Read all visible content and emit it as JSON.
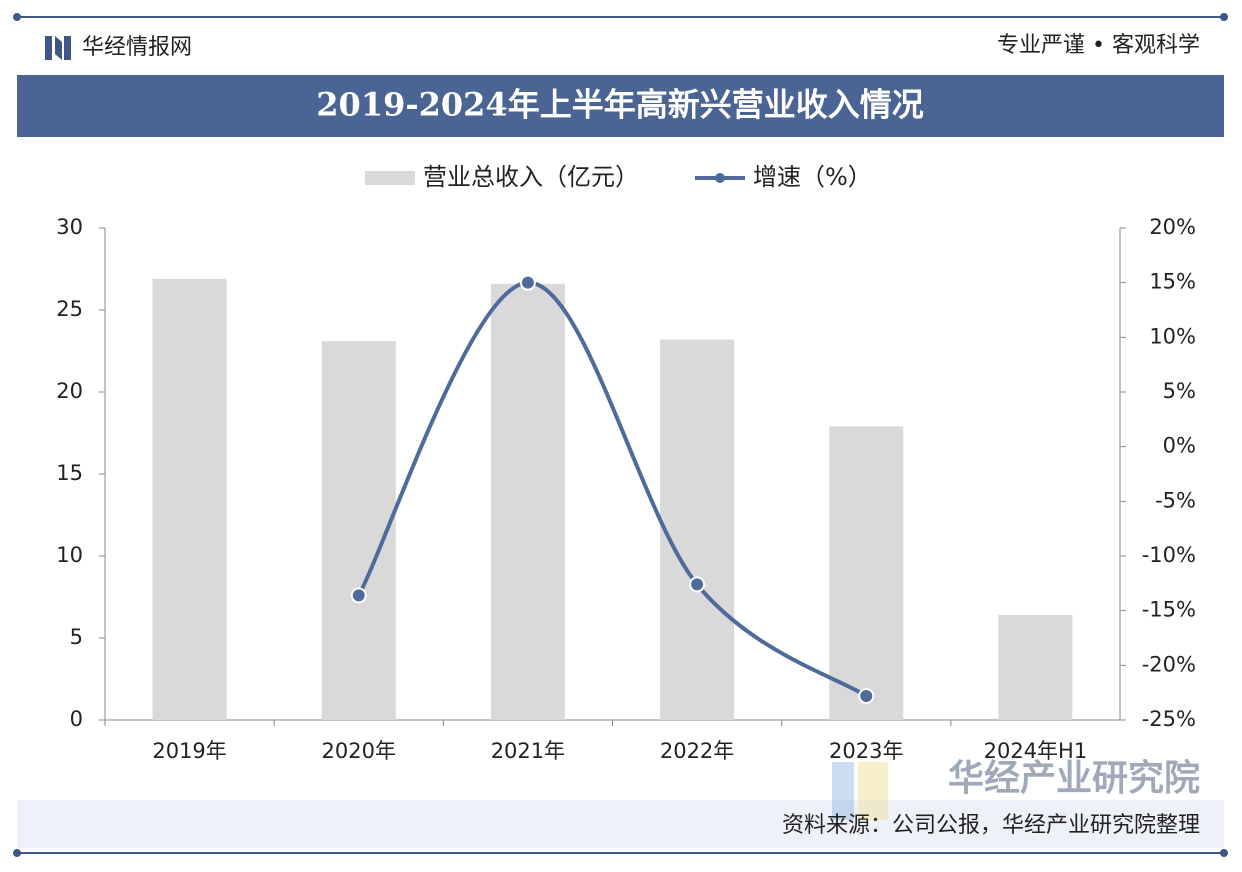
{
  "header": {
    "brand": "华经情报网",
    "slogan": "专业严谨 • 客观科学"
  },
  "chart_data": {
    "type": "bar",
    "title": "2019-2024年上半年高新兴营业收入情况",
    "categories": [
      "2019年",
      "2020年",
      "2021年",
      "2022年",
      "2023年",
      "2024年H1"
    ],
    "series": [
      {
        "name": "营业总收入（亿元）",
        "type": "bar",
        "color": "#d9d9d9",
        "values": [
          26.9,
          23.1,
          26.6,
          23.2,
          17.9,
          6.4
        ]
      },
      {
        "name": "增速（%）",
        "type": "line",
        "axis": "y2",
        "color": "#4f6b9b",
        "values": [
          null,
          -13.6,
          15.0,
          -12.6,
          -22.8,
          null
        ]
      }
    ],
    "ylim": [
      0,
      30
    ],
    "yticks": [
      0,
      5,
      10,
      15,
      20,
      25,
      30
    ],
    "y2lim": [
      -25,
      20
    ],
    "y2ticks": [
      {
        "value": -25,
        "label": "-25%"
      },
      {
        "value": -20,
        "label": "-20%"
      },
      {
        "value": -15,
        "label": "-15%"
      },
      {
        "value": -10,
        "label": "-10%"
      },
      {
        "value": -5,
        "label": "-5%"
      },
      {
        "value": 0,
        "label": "0%"
      },
      {
        "value": 5,
        "label": "5%"
      },
      {
        "value": 10,
        "label": "10%"
      },
      {
        "value": 15,
        "label": "15%"
      },
      {
        "value": 20,
        "label": "20%"
      }
    ]
  },
  "footer": {
    "source": "资料来源：公司公报，华经产业研究院整理",
    "watermark": "华经产业研究院"
  }
}
